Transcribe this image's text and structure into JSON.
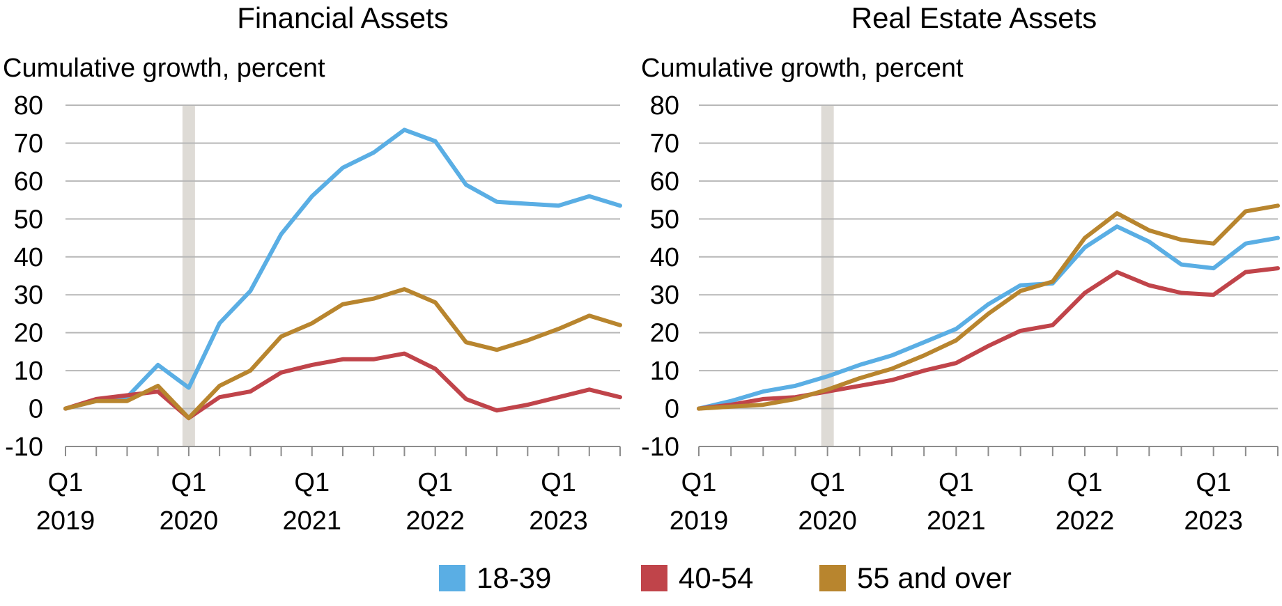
{
  "colors": {
    "grid": "#b7b7b7",
    "axis": "#8c8c8c",
    "shade": "#dedbd6"
  },
  "legend": [
    {
      "label": "18-39",
      "color": "#5aaee4"
    },
    {
      "label": "40-54",
      "color": "#c0444a"
    },
    {
      "label": "55 and over",
      "color": "#b8852e"
    }
  ],
  "chart_data": [
    {
      "type": "line",
      "title": "Financial Assets",
      "ylabel": "Cumulative growth, percent",
      "ylim": [
        -10,
        80
      ],
      "yticks": [
        80,
        70,
        60,
        50,
        40,
        30,
        20,
        10,
        0,
        -10
      ],
      "x_quarters": 19,
      "x_tick_labels": [
        {
          "q": "Q1",
          "year": "2019",
          "index": 0
        },
        {
          "q": "Q1",
          "year": "2020",
          "index": 4
        },
        {
          "q": "Q1",
          "year": "2021",
          "index": 8
        },
        {
          "q": "Q1",
          "year": "2022",
          "index": 12
        },
        {
          "q": "Q1",
          "year": "2023",
          "index": 16
        }
      ],
      "shaded_quarter": 4,
      "grid": true,
      "series": [
        {
          "name": "18-39",
          "color": "#5aaee4",
          "values": [
            0,
            2,
            3,
            11.5,
            5.5,
            22.5,
            31,
            46,
            56,
            63.5,
            67.5,
            73.5,
            70.5,
            59,
            54.5,
            54,
            53.5,
            56,
            53.5
          ]
        },
        {
          "name": "40-54",
          "color": "#c0444a",
          "values": [
            0,
            2.5,
            3.5,
            4.5,
            -2.5,
            3,
            4.5,
            9.5,
            11.5,
            13,
            13,
            14.5,
            10.5,
            2.5,
            -0.5,
            1,
            3,
            5,
            3
          ]
        },
        {
          "name": "55 and over",
          "color": "#b8852e",
          "values": [
            0,
            2,
            2,
            6,
            -2.5,
            6,
            10,
            19,
            22.5,
            27.5,
            29,
            31.5,
            28,
            17.5,
            15.5,
            18,
            21,
            24.5,
            22
          ]
        }
      ]
    },
    {
      "type": "line",
      "title": "Real Estate Assets",
      "ylabel": "Cumulative growth, percent",
      "ylim": [
        -10,
        80
      ],
      "yticks": [
        80,
        70,
        60,
        50,
        40,
        30,
        20,
        10,
        0,
        -10
      ],
      "x_quarters": 19,
      "x_tick_labels": [
        {
          "q": "Q1",
          "year": "2019",
          "index": 0
        },
        {
          "q": "Q1",
          "year": "2020",
          "index": 4
        },
        {
          "q": "Q1",
          "year": "2021",
          "index": 8
        },
        {
          "q": "Q1",
          "year": "2022",
          "index": 12
        },
        {
          "q": "Q1",
          "year": "2023",
          "index": 16
        }
      ],
      "shaded_quarter": 4,
      "grid": true,
      "series": [
        {
          "name": "18-39",
          "color": "#5aaee4",
          "values": [
            0,
            2,
            4.5,
            6,
            8.5,
            11.5,
            14,
            17.5,
            21,
            27.5,
            32.5,
            33,
            42.5,
            48,
            44,
            38,
            37,
            43.5,
            45
          ]
        },
        {
          "name": "40-54",
          "color": "#c0444a",
          "values": [
            0,
            1,
            2.5,
            3,
            4.5,
            6,
            7.5,
            10,
            12,
            16.5,
            20.5,
            22,
            30.5,
            36,
            32.5,
            30.5,
            30,
            36,
            37
          ]
        },
        {
          "name": "55 and over",
          "color": "#b8852e",
          "values": [
            0,
            0.5,
            1,
            2.5,
            5,
            8,
            10.5,
            14,
            18,
            25,
            31,
            33.5,
            45,
            51.5,
            47,
            44.5,
            43.5,
            52,
            53.5
          ]
        }
      ]
    }
  ]
}
